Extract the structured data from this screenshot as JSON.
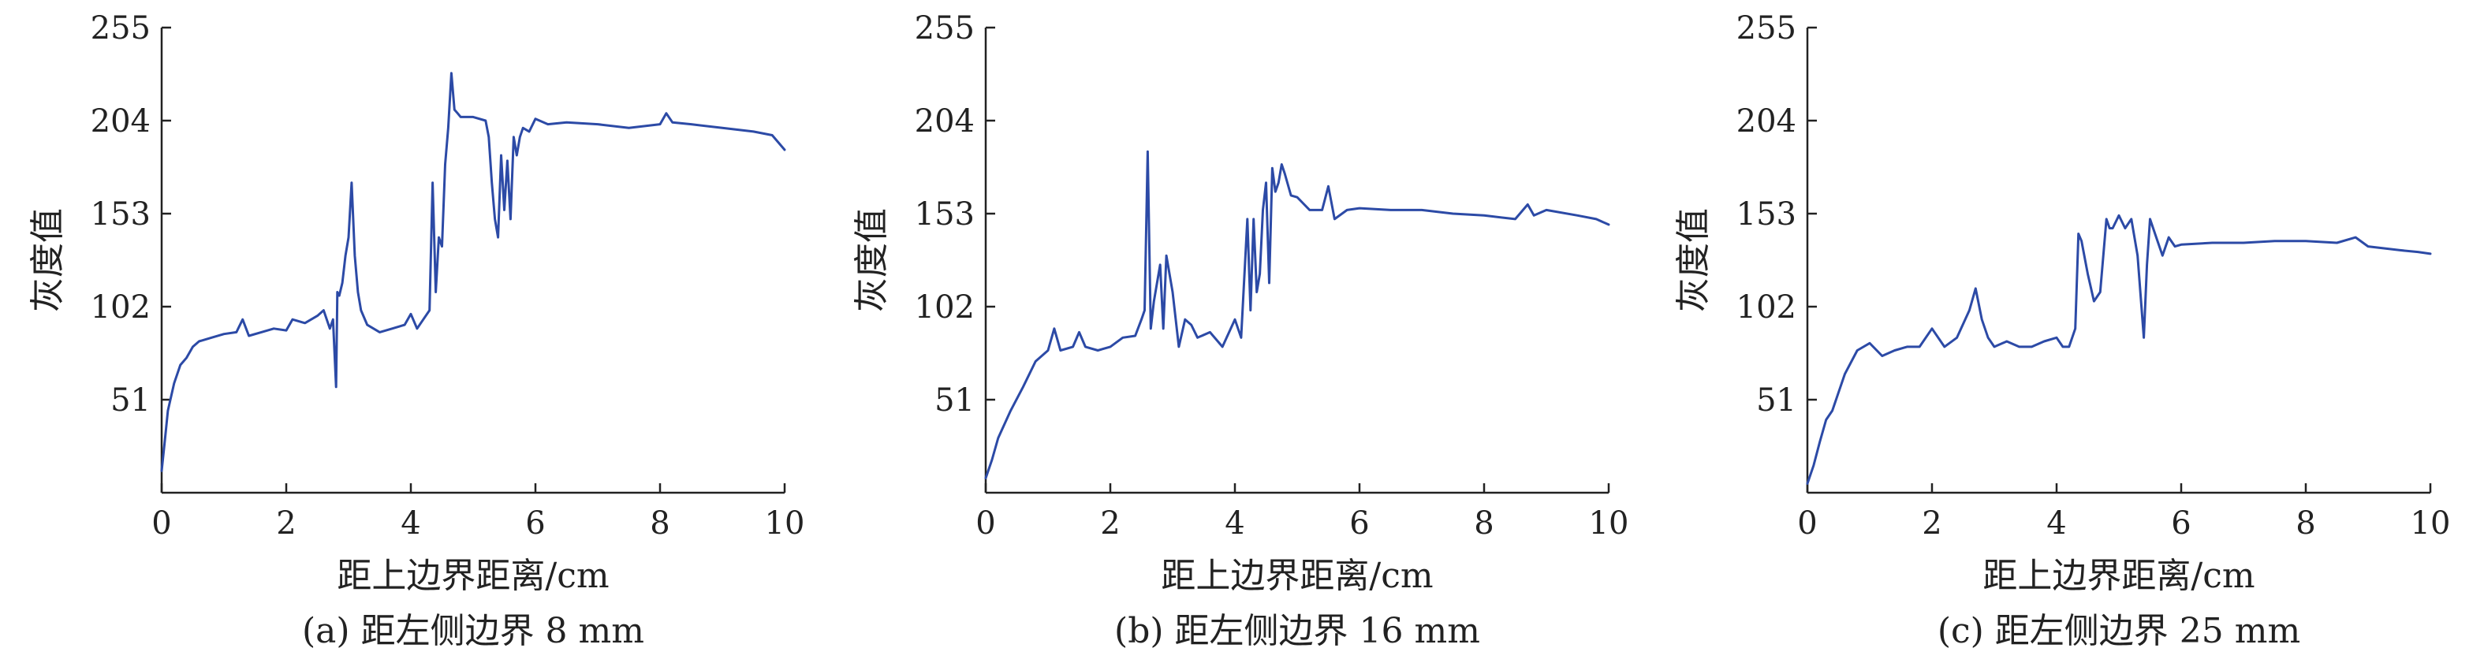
{
  "chart_data": [
    {
      "type": "line",
      "caption": "(a) 距左侧边界 8 mm",
      "xlabel": "距上边界距离/cm",
      "ylabel": "灰度值",
      "xlim": [
        0,
        10
      ],
      "ylim": [
        0,
        255
      ],
      "xticks": [
        0,
        2,
        4,
        6,
        8,
        10
      ],
      "yticks": [
        51,
        102,
        153,
        204,
        255
      ],
      "grid": false,
      "line_color": "#2c4aa6",
      "series": [
        {
          "x": [
            0,
            0.05,
            0.1,
            0.2,
            0.3,
            0.4,
            0.5,
            0.6,
            0.8,
            1.0,
            1.2,
            1.3,
            1.4,
            1.6,
            1.8,
            2.0,
            2.1,
            2.3,
            2.5,
            2.6,
            2.7,
            2.75,
            2.8,
            2.82,
            2.85,
            2.9,
            2.95,
            3.0,
            3.05,
            3.1,
            3.15,
            3.2,
            3.3,
            3.5,
            3.7,
            3.9,
            4.0,
            4.1,
            4.2,
            4.3,
            4.35,
            4.4,
            4.45,
            4.5,
            4.55,
            4.6,
            4.65,
            4.7,
            4.75,
            4.8,
            5.0,
            5.2,
            5.25,
            5.3,
            5.35,
            5.4,
            5.45,
            5.5,
            5.55,
            5.6,
            5.65,
            5.7,
            5.75,
            5.8,
            5.9,
            6.0,
            6.2,
            6.5,
            7.0,
            7.5,
            8.0,
            8.1,
            8.2,
            8.5,
            9.0,
            9.5,
            9.8,
            10.0
          ],
          "y": [
            12,
            28,
            45,
            60,
            70,
            74,
            80,
            83,
            85,
            87,
            88,
            95,
            86,
            88,
            90,
            89,
            95,
            93,
            97,
            100,
            90,
            95,
            58,
            110,
            108,
            115,
            130,
            140,
            170,
            130,
            110,
            100,
            92,
            88,
            90,
            92,
            98,
            90,
            95,
            100,
            170,
            110,
            140,
            135,
            180,
            200,
            230,
            210,
            208,
            206,
            206,
            204,
            195,
            170,
            150,
            140,
            185,
            155,
            182,
            150,
            195,
            185,
            195,
            200,
            198,
            205,
            202,
            203,
            202,
            200,
            202,
            208,
            203,
            202,
            200,
            198,
            196,
            188
          ]
        }
      ]
    },
    {
      "type": "line",
      "caption": "(b) 距左侧边界 16 mm",
      "xlabel": "距上边界距离/cm",
      "ylabel": "灰度值",
      "xlim": [
        0,
        10
      ],
      "ylim": [
        0,
        255
      ],
      "xticks": [
        0,
        2,
        4,
        6,
        8,
        10
      ],
      "yticks": [
        51,
        102,
        153,
        204,
        255
      ],
      "grid": false,
      "line_color": "#2c4aa6",
      "series": [
        {
          "x": [
            0,
            0.1,
            0.2,
            0.4,
            0.6,
            0.8,
            1.0,
            1.1,
            1.2,
            1.4,
            1.5,
            1.6,
            1.8,
            2.0,
            2.2,
            2.4,
            2.5,
            2.55,
            2.6,
            2.65,
            2.7,
            2.8,
            2.85,
            2.9,
            3.0,
            3.1,
            3.2,
            3.3,
            3.4,
            3.6,
            3.8,
            4.0,
            4.1,
            4.2,
            4.25,
            4.3,
            4.35,
            4.4,
            4.45,
            4.5,
            4.55,
            4.6,
            4.65,
            4.7,
            4.75,
            4.8,
            4.9,
            5.0,
            5.2,
            5.4,
            5.5,
            5.6,
            5.8,
            6.0,
            6.5,
            7.0,
            7.5,
            8.0,
            8.5,
            8.7,
            8.8,
            9.0,
            9.5,
            9.8,
            10.0
          ],
          "y": [
            8,
            18,
            30,
            45,
            58,
            72,
            78,
            90,
            78,
            80,
            88,
            80,
            78,
            80,
            85,
            86,
            95,
            100,
            187,
            90,
            105,
            125,
            90,
            130,
            110,
            80,
            95,
            92,
            85,
            88,
            80,
            95,
            85,
            150,
            100,
            150,
            110,
            120,
            155,
            170,
            115,
            178,
            165,
            170,
            180,
            175,
            163,
            162,
            155,
            155,
            168,
            150,
            155,
            156,
            155,
            155,
            153,
            152,
            150,
            158,
            152,
            155,
            152,
            150,
            147
          ]
        }
      ]
    },
    {
      "type": "line",
      "caption": "(c) 距左侧边界 25 mm",
      "xlabel": "距上边界距离/cm",
      "ylabel": "灰度值",
      "xlim": [
        0,
        10
      ],
      "ylim": [
        0,
        255
      ],
      "xticks": [
        0,
        2,
        4,
        6,
        8,
        10
      ],
      "yticks": [
        51,
        102,
        153,
        204,
        255
      ],
      "grid": false,
      "line_color": "#2c4aa6",
      "series": [
        {
          "x": [
            0,
            0.1,
            0.2,
            0.3,
            0.4,
            0.5,
            0.6,
            0.8,
            1.0,
            1.2,
            1.4,
            1.6,
            1.8,
            2.0,
            2.2,
            2.4,
            2.6,
            2.7,
            2.8,
            2.9,
            3.0,
            3.2,
            3.4,
            3.6,
            3.8,
            4.0,
            4.1,
            4.2,
            4.3,
            4.35,
            4.4,
            4.5,
            4.6,
            4.7,
            4.8,
            4.85,
            4.9,
            5.0,
            5.1,
            5.2,
            5.3,
            5.4,
            5.45,
            5.5,
            5.6,
            5.7,
            5.8,
            5.9,
            6.0,
            6.5,
            7.0,
            7.5,
            8.0,
            8.5,
            8.8,
            9.0,
            9.5,
            9.8,
            10.0
          ],
          "y": [
            5,
            15,
            28,
            40,
            45,
            55,
            65,
            78,
            82,
            75,
            78,
            80,
            80,
            90,
            80,
            85,
            100,
            112,
            95,
            85,
            80,
            83,
            80,
            80,
            83,
            85,
            80,
            80,
            90,
            142,
            138,
            120,
            105,
            110,
            150,
            145,
            145,
            152,
            145,
            150,
            130,
            85,
            125,
            150,
            140,
            130,
            140,
            135,
            136,
            137,
            137,
            138,
            138,
            137,
            140,
            135,
            133,
            132,
            131
          ]
        }
      ]
    }
  ]
}
